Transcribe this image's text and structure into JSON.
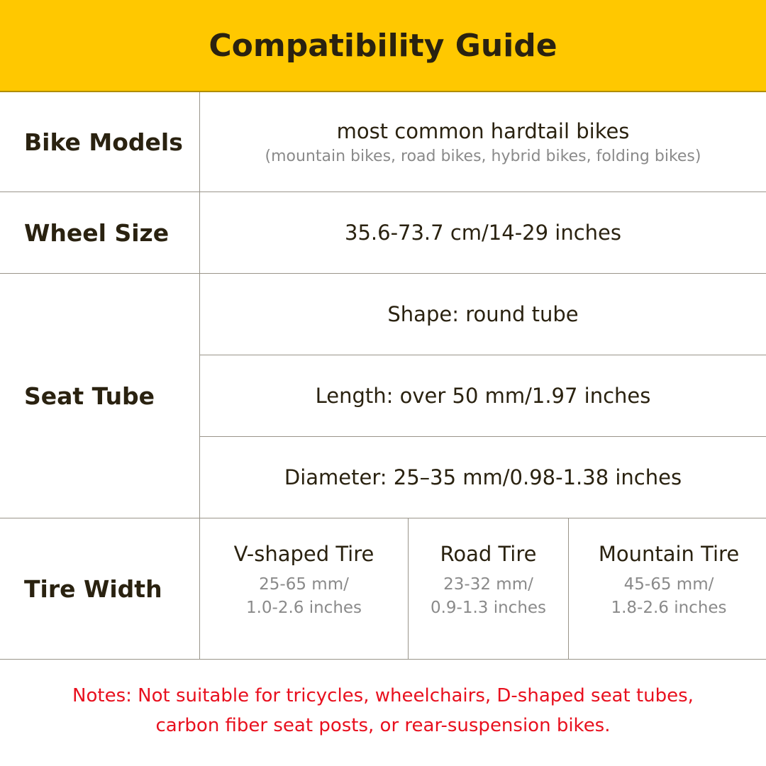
{
  "title": "Compatibility Guide",
  "colors": {
    "header_bg": "#FFC800",
    "notes": "#E8101E",
    "text": "#2a2210",
    "muted": "#8a8a8a"
  },
  "rows": {
    "bike_models": {
      "label": "Bike Models",
      "value": "most common hardtail bikes",
      "detail": "(mountain bikes, road bikes, hybrid bikes, folding bikes)"
    },
    "wheel_size": {
      "label": "Wheel Size",
      "value": "35.6-73.7 cm/14-29 inches"
    },
    "seat_tube": {
      "label": "Seat Tube",
      "shape": "Shape: round tube",
      "length": "Length: over 50 mm/1.97 inches",
      "diameter": "Diameter: 25–35 mm/0.98-1.38 inches"
    },
    "tire_width": {
      "label": "Tire Width",
      "tires": [
        {
          "name": "V-shaped Tire",
          "mm": "25-65 mm/",
          "inches": "1.0-2.6 inches"
        },
        {
          "name": "Road Tire",
          "mm": "23-32 mm/",
          "inches": "0.9-1.3 inches"
        },
        {
          "name": "Mountain Tire",
          "mm": "45-65 mm/",
          "inches": "1.8-2.6 inches"
        }
      ]
    }
  },
  "notes": [
    "Notes: Not suitable for tricycles, wheelchairs, D-shaped seat tubes,",
    "carbon fiber seat posts, or rear-suspension bikes."
  ]
}
